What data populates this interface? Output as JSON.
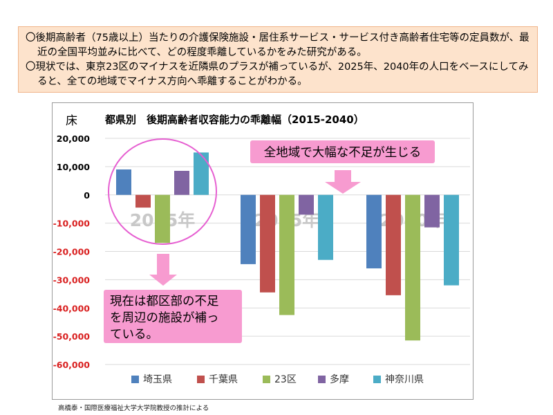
{
  "summary": {
    "line1": "〇後期高齢者（75歳以上）当たりの介護保険施設・居住系サービス・サービス付き高齢者住宅等の定員数が、最近の全国平均並みに比べて、どの程度乖離しているかをみた研究がある。",
    "line2": "〇現状では、東京23区のマイナスを近隣県のプラスが補っているが、2025年、2040年の人口をベースにしてみると、全ての地域でマイナス方向へ乖離することがわかる。"
  },
  "chart_data": {
    "type": "bar",
    "title": "都県別　後期高齢者収容能力の乖離幅（2015-2040）",
    "ylabel": "床",
    "categories": [
      "2015年",
      "2025年",
      "2040年"
    ],
    "series": [
      {
        "name": "埼玉県",
        "color": "#4f81bd",
        "values": [
          9000,
          -24500,
          -26000
        ]
      },
      {
        "name": "千葉県",
        "color": "#c0504d",
        "values": [
          -4500,
          -34500,
          -35500
        ]
      },
      {
        "name": "23区",
        "color": "#9bbb59",
        "values": [
          -17000,
          -42500,
          -51500
        ]
      },
      {
        "name": "多摩",
        "color": "#8064a2",
        "values": [
          8500,
          -7000,
          -11500
        ]
      },
      {
        "name": "神奈川県",
        "color": "#4bacc6",
        "values": [
          15000,
          -23000,
          -32000
        ]
      }
    ],
    "ylim": [
      -60000,
      20000
    ],
    "yticks": [
      "20,000",
      "10,000",
      "0",
      "-10,000",
      "-20,000",
      "-30,000",
      "-40,000",
      "-50,000",
      "-60,000"
    ],
    "ytick_values": [
      20000,
      10000,
      0,
      -10000,
      -20000,
      -30000,
      -40000,
      -50000,
      -60000
    ],
    "grid": true,
    "legend_position": "bottom",
    "annotations": {
      "all_regions": "全地域で大幅な不足が生じる",
      "current": "現在は都区部の不足を周辺の施設が補っている。"
    }
  },
  "colors": {
    "annotation_pink": "#f79bd0",
    "circle_magenta": "#e65fd1",
    "negative_tick": "#d92020",
    "category_label": "#c8c8c8"
  },
  "source": "高橋泰・国際医療福祉大学大学院教授の推計による"
}
